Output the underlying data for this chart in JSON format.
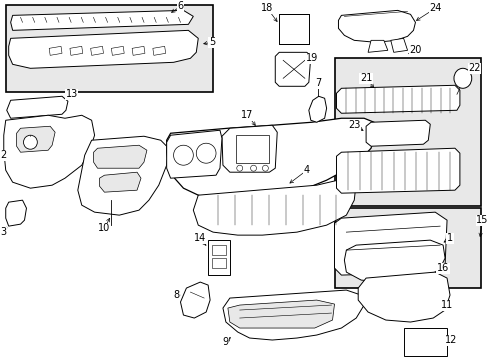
{
  "bg_color": "#ffffff",
  "lc": "#000000",
  "box_bg": "#e8e8e8",
  "figsize": [
    4.89,
    3.6
  ],
  "dpi": 100,
  "xlim": [
    0,
    489
  ],
  "ylim": [
    0,
    360
  ]
}
